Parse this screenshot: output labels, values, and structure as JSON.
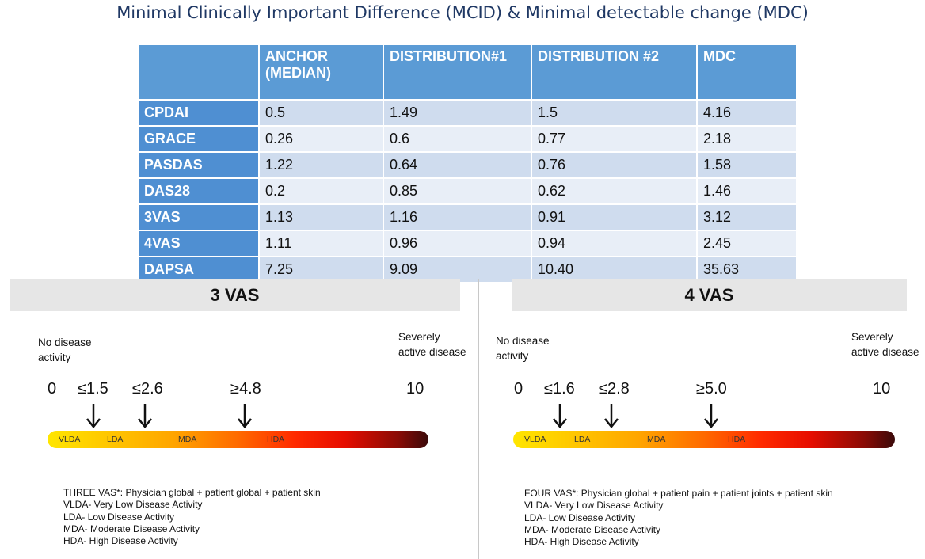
{
  "title": "Minimal Clinically Important Difference (MCID) & Minimal detectable change (MDC)",
  "table": {
    "headers": [
      "",
      "ANCHOR\n(MEDIAN)",
      "DISTRIBUTION#1",
      "DISTRIBUTION #2",
      "MDC"
    ],
    "header_anchor_line1": "ANCHOR",
    "header_anchor_line2": "(MEDIAN)",
    "rows": [
      {
        "name": "CPDAI",
        "anchor": "0.5",
        "dist1": "1.49",
        "dist2": "1.5",
        "mdc": "4.16"
      },
      {
        "name": "GRACE",
        "anchor": "0.26",
        "dist1": "0.6",
        "dist2": "0.77",
        "mdc": "2.18"
      },
      {
        "name": "PASDAS",
        "anchor": "1.22",
        "dist1": "0.64",
        "dist2": "0.76",
        "mdc": "1.58"
      },
      {
        "name": "DAS28",
        "anchor": "0.2",
        "dist1": "0.85",
        "dist2": "0.62",
        "mdc": "1.46"
      },
      {
        "name": "3VAS",
        "anchor": "1.13",
        "dist1": "1.16",
        "dist2": "0.91",
        "mdc": "3.12"
      },
      {
        "name": "4VAS",
        "anchor": "1.11",
        "dist1": "0.96",
        "dist2": "0.94",
        "mdc": "2.45"
      },
      {
        "name": "DAPSA",
        "anchor": "7.25",
        "dist1": "9.09",
        "dist2": "10.40",
        "mdc": "35.63"
      }
    ]
  },
  "panels": {
    "vas3": {
      "heading": "3 VAS",
      "low_label_1": "No disease",
      "low_label_2": "activity",
      "high_label_1": "Severely",
      "high_label_2": "active disease",
      "ticks": [
        "0",
        "≤1.5",
        "≤2.6",
        "≥4.8",
        "10"
      ],
      "zones": [
        "VLDA",
        "LDA",
        "MDA",
        "HDA"
      ],
      "legend": [
        "THREE VAS*: Physician global + patient global + patient skin",
        "VLDA- Very Low Disease Activity",
        "LDA- Low Disease Activity",
        "MDA- Moderate Disease Activity",
        "HDA- High Disease Activity"
      ]
    },
    "vas4": {
      "heading": "4 VAS",
      "low_label_1": "No disease",
      "low_label_2": "activity",
      "high_label_1": "Severely",
      "high_label_2": "active disease",
      "ticks": [
        "0",
        "≤1.6",
        "≤2.8",
        "≥5.0",
        "10"
      ],
      "zones": [
        "VLDA",
        "LDA",
        "MDA",
        "HDA"
      ],
      "legend": [
        "FOUR VAS*: Physician global + patient pain + patient joints + patient skin",
        "VLDA- Very Low Disease Activity",
        "LDA- Low Disease Activity",
        "MDA- Moderate Disease Activity",
        "HDA- High Disease Activity"
      ]
    }
  },
  "colors": {
    "title": "#1f3864",
    "table_header": "#5b9bd5",
    "row_odd": "#cfdcee",
    "row_even": "#e8eef7",
    "panel_header": "#e6e6e6"
  }
}
